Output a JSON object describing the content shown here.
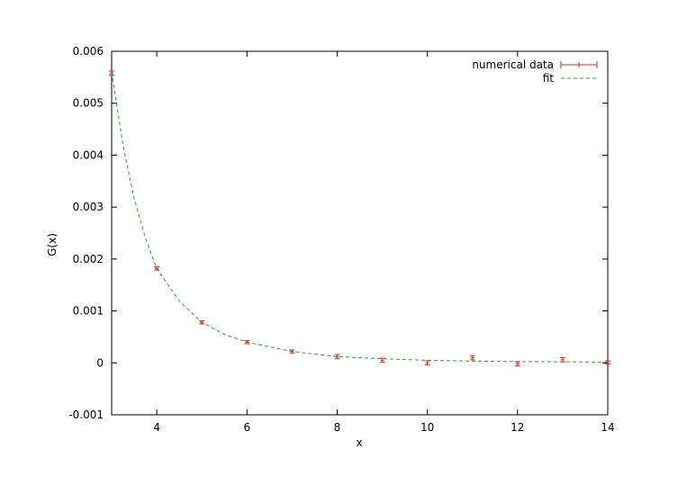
{
  "chart_data": {
    "type": "scatter",
    "xlabel": "x",
    "ylabel": "G(x)",
    "xlim": [
      3,
      14
    ],
    "ylim": [
      -0.001,
      0.006
    ],
    "xticks": [
      4,
      6,
      8,
      10,
      12,
      14
    ],
    "xtick_labels": [
      "4",
      "6",
      "8",
      "10",
      "12",
      "14"
    ],
    "yticks": [
      -0.001,
      0,
      0.001,
      0.002,
      0.003,
      0.004,
      0.005,
      0.006
    ],
    "ytick_labels": [
      "-0.001",
      "0",
      "0.001",
      "0.002",
      "0.003",
      "0.004",
      "0.005",
      "0.006"
    ],
    "grid": false,
    "legend_position": "top-right",
    "series": [
      {
        "name": "numerical data",
        "style": "points-with-errorbars",
        "color": "#d62728",
        "x": [
          3,
          4,
          5,
          6,
          7,
          8,
          9,
          10,
          11,
          12,
          13,
          14
        ],
        "y": [
          0.00558,
          0.00182,
          0.00078,
          0.0004,
          0.00022,
          0.00012,
          5e-05,
          0.0,
          0.0001,
          -2e-05,
          6e-05,
          1e-05
        ],
        "yerr": [
          4e-05,
          3e-05,
          3e-05,
          3e-05,
          3e-05,
          4e-05,
          4e-05,
          4e-05,
          4e-05,
          4e-05,
          4e-05,
          3e-05
        ]
      },
      {
        "name": "fit",
        "style": "dashed-line",
        "color": "#2ca02c",
        "x": [
          3,
          3.25,
          3.5,
          3.75,
          4,
          4.5,
          5,
          5.5,
          6,
          7,
          8,
          9,
          10,
          11,
          12,
          13,
          14
        ],
        "y": [
          0.0056,
          0.0042,
          0.00316,
          0.0024,
          0.00182,
          0.00119,
          0.00078,
          0.00055,
          0.0004,
          0.00022,
          0.00012,
          8e-05,
          5e-05,
          3.5e-05,
          2.5e-05,
          2e-05,
          1.5e-05
        ]
      }
    ]
  }
}
